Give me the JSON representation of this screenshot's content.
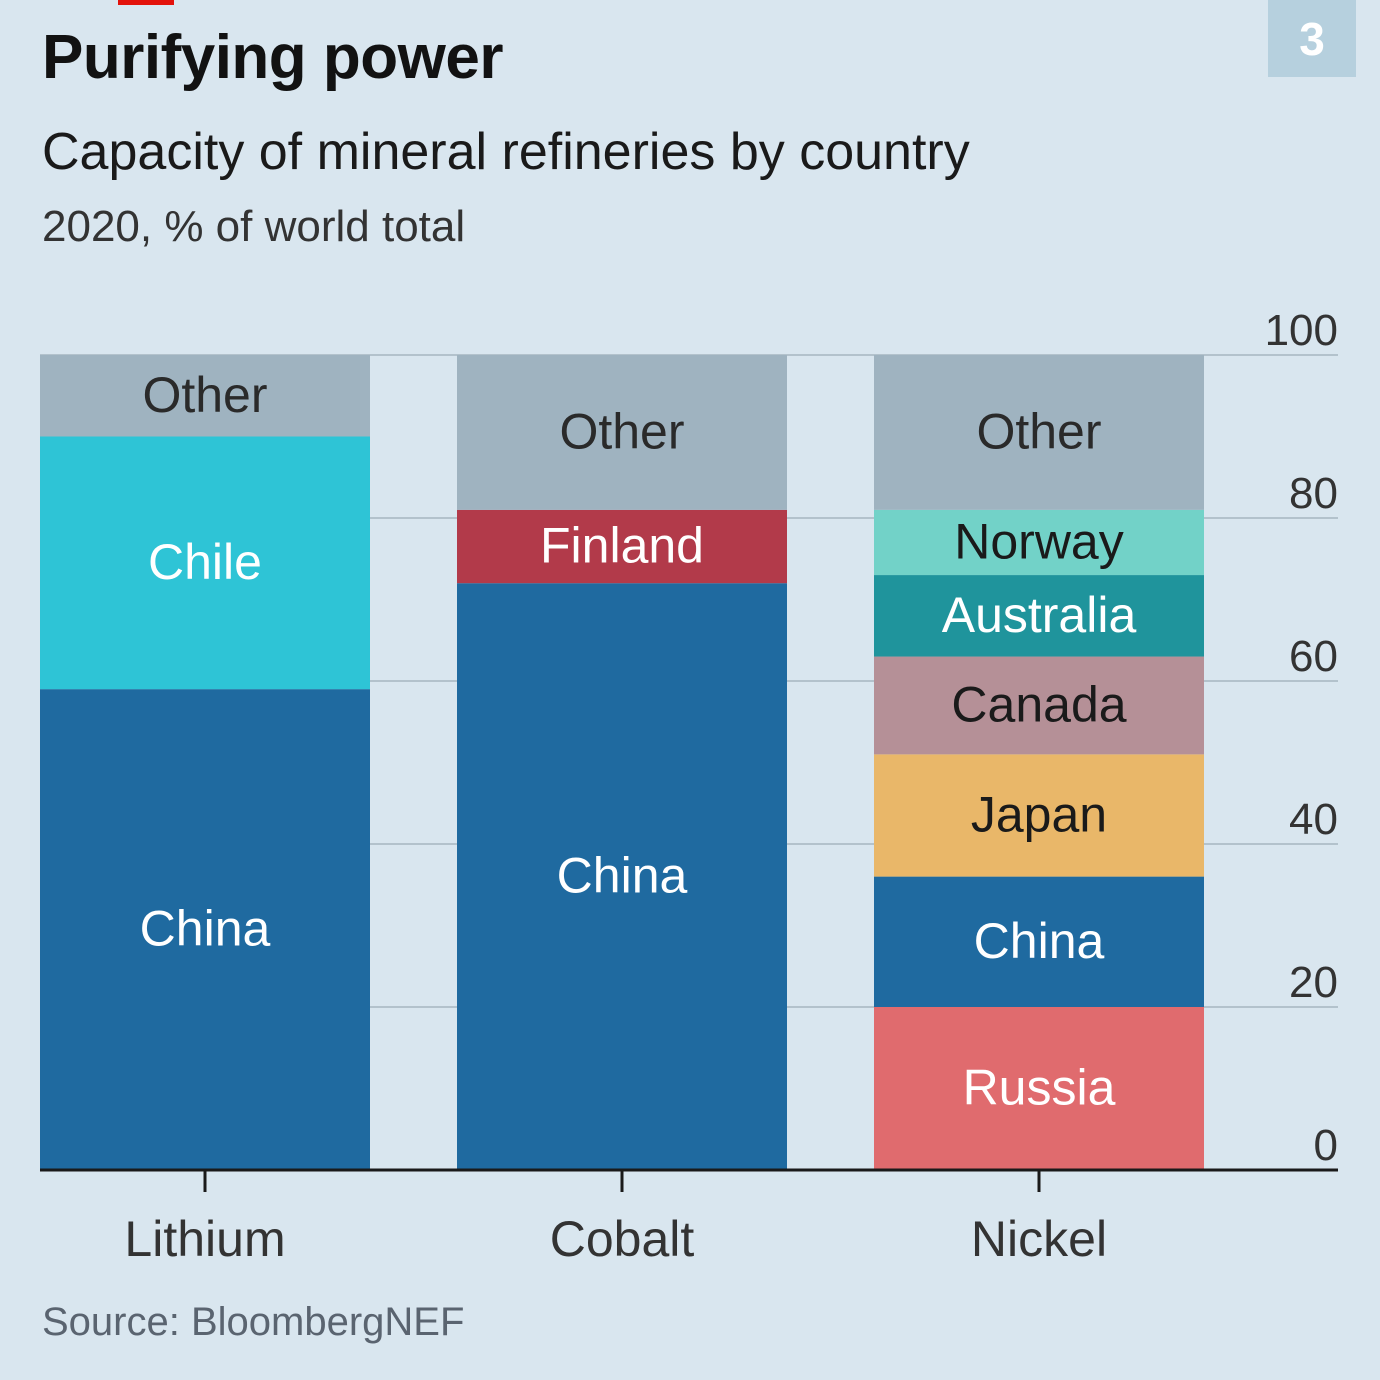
{
  "badge": {
    "number": "3"
  },
  "header": {
    "title": "Purifying power",
    "subtitle": "Capacity of mineral refineries by country",
    "unit_note": "2020, % of world total"
  },
  "footer": {
    "source": "Source: BloombergNEF"
  },
  "colors": {
    "background": "#d9e6ef",
    "gridline": "#b3c2cc",
    "axis": "#1a1a1a",
    "China": "#1f6aa0",
    "Chile": "#2ec4d6",
    "Other": "#9fb3c0",
    "Finland": "#b23a4a",
    "Norway": "#72d2c8",
    "Australia": "#1f949c",
    "Canada": "#b59097",
    "Japan": "#e9b769",
    "Russia": "#e06b6e"
  },
  "chart_data": {
    "type": "bar",
    "stacked": true,
    "title": "Purifying power",
    "subtitle": "Capacity of mineral refineries by country",
    "ylabel": "2020, % of world total",
    "ylim": [
      0,
      100
    ],
    "yticks": [
      0,
      20,
      40,
      60,
      80,
      100
    ],
    "yaxis_position": "right",
    "grid": true,
    "categories": [
      "Lithium",
      "Cobalt",
      "Nickel"
    ],
    "stacks": [
      {
        "category": "Lithium",
        "segments": [
          {
            "label": "China",
            "value": 59,
            "text_color": "#ffffff"
          },
          {
            "label": "Chile",
            "value": 31,
            "text_color": "#ffffff"
          },
          {
            "label": "Other",
            "value": 10,
            "text_color": "#2a2a2a"
          }
        ]
      },
      {
        "category": "Cobalt",
        "segments": [
          {
            "label": "China",
            "value": 72,
            "text_color": "#ffffff"
          },
          {
            "label": "Finland",
            "value": 9,
            "text_color": "#ffffff"
          },
          {
            "label": "Other",
            "value": 19,
            "text_color": "#2a2a2a"
          }
        ]
      },
      {
        "category": "Nickel",
        "segments": [
          {
            "label": "Russia",
            "value": 20,
            "text_color": "#ffffff"
          },
          {
            "label": "China",
            "value": 16,
            "text_color": "#ffffff"
          },
          {
            "label": "Japan",
            "value": 15,
            "text_color": "#1a1a1a"
          },
          {
            "label": "Canada",
            "value": 12,
            "text_color": "#1a1a1a"
          },
          {
            "label": "Australia",
            "value": 10,
            "text_color": "#ffffff"
          },
          {
            "label": "Norway",
            "value": 8,
            "text_color": "#1a1a1a"
          },
          {
            "label": "Other",
            "value": 19,
            "text_color": "#2a2a2a"
          }
        ]
      }
    ]
  }
}
